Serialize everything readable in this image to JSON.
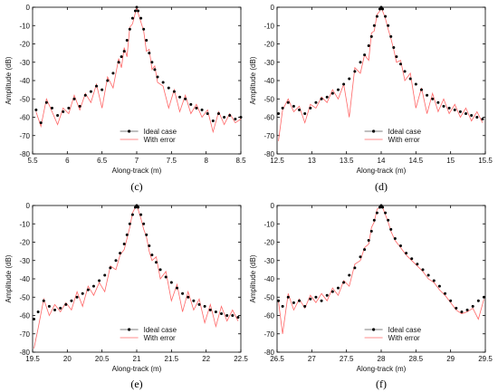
{
  "figure": {
    "style": {
      "ideal_color": "#000000",
      "error_color": "#ff6666",
      "axes_color": "#000000",
      "background": "#ffffff"
    },
    "legend": {
      "labels": [
        "Ideal case",
        "With error"
      ],
      "placement": "bottom-right"
    }
  },
  "chart_data": [
    {
      "type": "line",
      "caption": "(c)",
      "xlabel": "Along-track (m)",
      "ylabel": "Amplitude (dB)",
      "xlim": [
        5.5,
        8.5
      ],
      "ylim": [
        -80,
        0
      ],
      "xticks": [
        5.5,
        6,
        6.5,
        7,
        7.5,
        8,
        8.5
      ],
      "yticks": [
        0,
        -10,
        -20,
        -30,
        -40,
        -50,
        -60,
        -70,
        -80
      ],
      "grid": false,
      "legend": "bottom-right",
      "series": [
        {
          "name": "Ideal case",
          "style": "dots",
          "x": [
            5.55,
            5.62,
            5.7,
            5.78,
            5.86,
            5.94,
            6.02,
            6.1,
            6.18,
            6.26,
            6.34,
            6.42,
            6.5,
            6.58,
            6.66,
            6.74,
            6.78,
            6.82,
            6.86,
            6.9,
            6.94,
            6.98,
            7.0,
            7.02,
            7.06,
            7.1,
            7.14,
            7.18,
            7.22,
            7.26,
            7.3,
            7.38,
            7.46,
            7.54,
            7.62,
            7.7,
            7.78,
            7.86,
            7.94,
            8.02,
            8.1,
            8.18,
            8.26,
            8.34,
            8.42,
            8.5
          ],
          "y": [
            -56,
            -63,
            -52,
            -55,
            -59,
            -57,
            -55,
            -50,
            -54,
            -48,
            -46,
            -43,
            -45,
            -40,
            -36,
            -30,
            -27,
            -24,
            -18,
            -12,
            -6,
            -2,
            0,
            -2,
            -6,
            -12,
            -18,
            -25,
            -30,
            -34,
            -38,
            -41,
            -44,
            -46,
            -49,
            -50,
            -53,
            -55,
            -56,
            -58,
            -62,
            -58,
            -60,
            -59,
            -61,
            -60
          ]
        },
        {
          "name": "With error",
          "style": "line",
          "x": [
            5.55,
            5.62,
            5.7,
            5.78,
            5.86,
            5.94,
            6.02,
            6.1,
            6.18,
            6.26,
            6.34,
            6.42,
            6.5,
            6.58,
            6.66,
            6.74,
            6.78,
            6.82,
            6.86,
            6.9,
            6.94,
            6.98,
            7.0,
            7.02,
            7.06,
            7.1,
            7.14,
            7.18,
            7.22,
            7.26,
            7.3,
            7.38,
            7.46,
            7.54,
            7.62,
            7.7,
            7.78,
            7.86,
            7.94,
            8.02,
            8.1,
            8.18,
            8.26,
            8.34,
            8.42,
            8.5
          ],
          "y": [
            -57,
            -65,
            -50,
            -57,
            -64,
            -55,
            -58,
            -48,
            -56,
            -47,
            -52,
            -42,
            -55,
            -38,
            -44,
            -28,
            -33,
            -22,
            -27,
            -11,
            -9,
            -3,
            0,
            -3,
            -8,
            -13,
            -24,
            -23,
            -34,
            -32,
            -41,
            -43,
            -55,
            -45,
            -57,
            -48,
            -58,
            -53,
            -60,
            -56,
            -68,
            -57,
            -64,
            -58,
            -63,
            -61
          ]
        }
      ]
    },
    {
      "type": "line",
      "caption": "(d)",
      "xlabel": "Along-track (m)",
      "ylabel": "Amplitude (dB)",
      "xlim": [
        12.5,
        15.5
      ],
      "ylim": [
        -80,
        0
      ],
      "xticks": [
        12.5,
        13,
        13.5,
        14,
        14.5,
        15,
        15.5
      ],
      "yticks": [
        0,
        -10,
        -20,
        -30,
        -40,
        -50,
        -60,
        -70,
        -80
      ],
      "grid": false,
      "legend": "bottom-right",
      "series": [
        {
          "name": "Ideal case",
          "style": "dots",
          "x": [
            12.52,
            12.58,
            12.66,
            12.74,
            12.82,
            12.9,
            12.98,
            13.06,
            13.14,
            13.22,
            13.3,
            13.38,
            13.46,
            13.54,
            13.62,
            13.7,
            13.76,
            13.82,
            13.86,
            13.9,
            13.94,
            13.98,
            14.0,
            14.02,
            14.06,
            14.1,
            14.14,
            14.18,
            14.22,
            14.28,
            14.34,
            14.42,
            14.5,
            14.58,
            14.66,
            14.74,
            14.82,
            14.9,
            14.98,
            15.06,
            15.14,
            15.22,
            15.3,
            15.38,
            15.46
          ],
          "y": [
            -58,
            -55,
            -52,
            -54,
            -56,
            -58,
            -55,
            -52,
            -50,
            -49,
            -47,
            -45,
            -42,
            -39,
            -35,
            -30,
            -26,
            -21,
            -16,
            -10,
            -5,
            -1,
            0,
            -1,
            -5,
            -10,
            -16,
            -22,
            -27,
            -31,
            -35,
            -39,
            -42,
            -45,
            -48,
            -50,
            -52,
            -54,
            -55,
            -56,
            -57,
            -58,
            -59,
            -60,
            -61
          ]
        },
        {
          "name": "With error",
          "style": "line",
          "x": [
            12.52,
            12.58,
            12.66,
            12.74,
            12.82,
            12.9,
            12.98,
            13.06,
            13.14,
            13.22,
            13.3,
            13.38,
            13.46,
            13.54,
            13.62,
            13.7,
            13.76,
            13.82,
            13.86,
            13.9,
            13.94,
            13.98,
            14.0,
            14.02,
            14.06,
            14.1,
            14.14,
            14.18,
            14.22,
            14.28,
            14.34,
            14.42,
            14.5,
            14.58,
            14.66,
            14.74,
            14.82,
            14.9,
            14.98,
            15.06,
            15.14,
            15.22,
            15.3,
            15.38,
            15.46
          ],
          "y": [
            -73,
            -56,
            -50,
            -57,
            -54,
            -63,
            -53,
            -55,
            -49,
            -52,
            -45,
            -50,
            -42,
            -60,
            -33,
            -36,
            -26,
            -29,
            -14,
            -13,
            -4,
            -2,
            0,
            -2,
            -6,
            -12,
            -17,
            -23,
            -30,
            -29,
            -40,
            -36,
            -55,
            -44,
            -58,
            -47,
            -57,
            -50,
            -58,
            -53,
            -60,
            -55,
            -62,
            -57,
            -63
          ]
        }
      ]
    },
    {
      "type": "line",
      "caption": "(e)",
      "xlabel": "Along-track (m)",
      "ylabel": "Amplitude (dB)",
      "xlim": [
        19.5,
        22.5
      ],
      "ylim": [
        -80,
        0
      ],
      "xticks": [
        19.5,
        20,
        20.5,
        21,
        21.5,
        22,
        22.5
      ],
      "yticks": [
        0,
        -10,
        -20,
        -30,
        -40,
        -50,
        -60,
        -70,
        -80
      ],
      "grid": false,
      "legend": "bottom-right",
      "series": [
        {
          "name": "Ideal case",
          "style": "dots",
          "x": [
            19.52,
            19.58,
            19.66,
            19.74,
            19.82,
            19.9,
            19.98,
            20.06,
            20.14,
            20.22,
            20.3,
            20.38,
            20.46,
            20.54,
            20.62,
            20.7,
            20.76,
            20.82,
            20.86,
            20.9,
            20.94,
            20.98,
            21.0,
            21.02,
            21.06,
            21.1,
            21.14,
            21.18,
            21.22,
            21.28,
            21.34,
            21.42,
            21.5,
            21.58,
            21.66,
            21.74,
            21.82,
            21.9,
            21.98,
            22.06,
            22.14,
            22.22,
            22.3,
            22.38,
            22.46
          ],
          "y": [
            -62,
            -58,
            -52,
            -55,
            -57,
            -56,
            -54,
            -52,
            -50,
            -48,
            -46,
            -44,
            -41,
            -38,
            -34,
            -30,
            -26,
            -21,
            -16,
            -10,
            -5,
            -1,
            0,
            -1,
            -5,
            -10,
            -16,
            -22,
            -27,
            -31,
            -35,
            -39,
            -42,
            -45,
            -48,
            -50,
            -52,
            -54,
            -55,
            -57,
            -58,
            -59,
            -60,
            -60,
            -61
          ]
        },
        {
          "name": "With error",
          "style": "line",
          "x": [
            19.52,
            19.58,
            19.66,
            19.74,
            19.82,
            19.9,
            19.98,
            20.06,
            20.14,
            20.22,
            20.3,
            20.38,
            20.46,
            20.54,
            20.62,
            20.7,
            20.76,
            20.82,
            20.86,
            20.9,
            20.94,
            20.98,
            21.0,
            21.02,
            21.06,
            21.1,
            21.14,
            21.18,
            21.22,
            21.28,
            21.34,
            21.42,
            21.5,
            21.58,
            21.66,
            21.74,
            21.82,
            21.9,
            21.98,
            22.06,
            22.14,
            22.22,
            22.3,
            22.38,
            22.46
          ],
          "y": [
            -78,
            -67,
            -51,
            -60,
            -54,
            -58,
            -53,
            -57,
            -47,
            -55,
            -44,
            -49,
            -42,
            -47,
            -33,
            -35,
            -27,
            -24,
            -18,
            -12,
            -4,
            -1,
            0,
            -2,
            -7,
            -13,
            -17,
            -25,
            -30,
            -28,
            -40,
            -36,
            -52,
            -43,
            -58,
            -47,
            -57,
            -51,
            -64,
            -54,
            -66,
            -55,
            -63,
            -57,
            -63
          ]
        }
      ]
    },
    {
      "type": "line",
      "caption": "(f)",
      "xlabel": "Along-track (m)",
      "ylabel": "Amplitude (dB)",
      "xlim": [
        26.5,
        29.5
      ],
      "ylim": [
        -80,
        0
      ],
      "xticks": [
        26.5,
        27,
        27.5,
        28,
        28.5,
        29,
        29.5
      ],
      "yticks": [
        0,
        -10,
        -20,
        -30,
        -40,
        -50,
        -60,
        -70,
        -80
      ],
      "grid": false,
      "legend": "bottom-right",
      "series": [
        {
          "name": "Ideal case",
          "style": "dots",
          "x": [
            26.52,
            26.58,
            26.66,
            26.74,
            26.82,
            26.9,
            26.98,
            27.06,
            27.14,
            27.22,
            27.3,
            27.38,
            27.46,
            27.54,
            27.62,
            27.7,
            27.76,
            27.82,
            27.86,
            27.9,
            27.94,
            27.98,
            28.0,
            28.02,
            28.06,
            28.1,
            28.14,
            28.2,
            28.28,
            28.36,
            28.44,
            28.52,
            28.6,
            28.68,
            28.76,
            28.84,
            28.92,
            29.0,
            29.08,
            29.16,
            29.24,
            29.32,
            29.4,
            29.48
          ],
          "y": [
            -52,
            -55,
            -50,
            -53,
            -52,
            -55,
            -51,
            -50,
            -52,
            -49,
            -47,
            -45,
            -42,
            -38,
            -34,
            -28,
            -24,
            -19,
            -14,
            -8,
            -4,
            -1,
            0,
            -1,
            -4,
            -8,
            -13,
            -18,
            -22,
            -26,
            -29,
            -32,
            -35,
            -38,
            -41,
            -44,
            -48,
            -52,
            -56,
            -58,
            -57,
            -55,
            -52,
            -50
          ]
        },
        {
          "name": "With error",
          "style": "line",
          "x": [
            26.52,
            26.58,
            26.66,
            26.74,
            26.82,
            26.9,
            26.98,
            27.06,
            27.14,
            27.22,
            27.3,
            27.38,
            27.46,
            27.54,
            27.62,
            27.7,
            27.76,
            27.82,
            27.86,
            27.9,
            27.94,
            27.98,
            28.0,
            28.02,
            28.06,
            28.1,
            28.14,
            28.2,
            28.28,
            28.36,
            28.44,
            28.52,
            28.6,
            28.68,
            28.76,
            28.84,
            28.92,
            29.0,
            29.08,
            29.16,
            29.24,
            29.32,
            29.4,
            29.48
          ],
          "y": [
            -52,
            -70,
            -48,
            -57,
            -51,
            -56,
            -49,
            -53,
            -48,
            -52,
            -45,
            -49,
            -41,
            -44,
            -32,
            -30,
            -23,
            -21,
            -12,
            -9,
            -2,
            -1,
            0,
            -1,
            -5,
            -9,
            -14,
            -19,
            -23,
            -27,
            -30,
            -33,
            -36,
            -40,
            -42,
            -46,
            -49,
            -53,
            -57,
            -59,
            -58,
            -56,
            -62,
            -51
          ]
        }
      ]
    }
  ]
}
